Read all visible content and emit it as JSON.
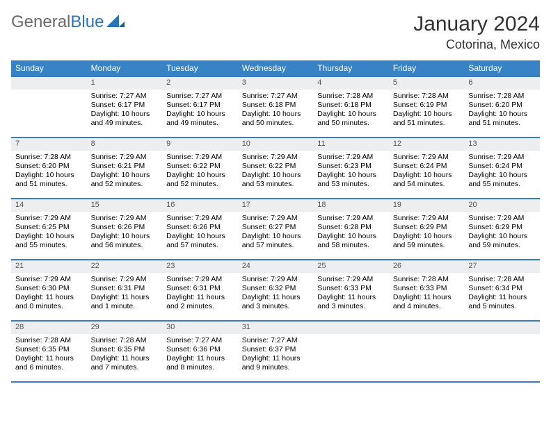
{
  "brand": {
    "general": "General",
    "blue": "Blue"
  },
  "title": "January 2024",
  "location": "Cotorina, Mexico",
  "colors": {
    "header_bg": "#3783c6",
    "row_border": "#3b7bbf",
    "daynum_bg": "#eceeef",
    "logo_gray": "#6a6a6a",
    "logo_blue": "#2a73b8"
  },
  "days_of_week": [
    "Sunday",
    "Monday",
    "Tuesday",
    "Wednesday",
    "Thursday",
    "Friday",
    "Saturday"
  ],
  "weeks": [
    [
      null,
      {
        "n": "1",
        "sr": "Sunrise: 7:27 AM",
        "ss": "Sunset: 6:17 PM",
        "d1": "Daylight: 10 hours",
        "d2": "and 49 minutes."
      },
      {
        "n": "2",
        "sr": "Sunrise: 7:27 AM",
        "ss": "Sunset: 6:17 PM",
        "d1": "Daylight: 10 hours",
        "d2": "and 49 minutes."
      },
      {
        "n": "3",
        "sr": "Sunrise: 7:27 AM",
        "ss": "Sunset: 6:18 PM",
        "d1": "Daylight: 10 hours",
        "d2": "and 50 minutes."
      },
      {
        "n": "4",
        "sr": "Sunrise: 7:28 AM",
        "ss": "Sunset: 6:18 PM",
        "d1": "Daylight: 10 hours",
        "d2": "and 50 minutes."
      },
      {
        "n": "5",
        "sr": "Sunrise: 7:28 AM",
        "ss": "Sunset: 6:19 PM",
        "d1": "Daylight: 10 hours",
        "d2": "and 51 minutes."
      },
      {
        "n": "6",
        "sr": "Sunrise: 7:28 AM",
        "ss": "Sunset: 6:20 PM",
        "d1": "Daylight: 10 hours",
        "d2": "and 51 minutes."
      }
    ],
    [
      {
        "n": "7",
        "sr": "Sunrise: 7:28 AM",
        "ss": "Sunset: 6:20 PM",
        "d1": "Daylight: 10 hours",
        "d2": "and 51 minutes."
      },
      {
        "n": "8",
        "sr": "Sunrise: 7:29 AM",
        "ss": "Sunset: 6:21 PM",
        "d1": "Daylight: 10 hours",
        "d2": "and 52 minutes."
      },
      {
        "n": "9",
        "sr": "Sunrise: 7:29 AM",
        "ss": "Sunset: 6:22 PM",
        "d1": "Daylight: 10 hours",
        "d2": "and 52 minutes."
      },
      {
        "n": "10",
        "sr": "Sunrise: 7:29 AM",
        "ss": "Sunset: 6:22 PM",
        "d1": "Daylight: 10 hours",
        "d2": "and 53 minutes."
      },
      {
        "n": "11",
        "sr": "Sunrise: 7:29 AM",
        "ss": "Sunset: 6:23 PM",
        "d1": "Daylight: 10 hours",
        "d2": "and 53 minutes."
      },
      {
        "n": "12",
        "sr": "Sunrise: 7:29 AM",
        "ss": "Sunset: 6:24 PM",
        "d1": "Daylight: 10 hours",
        "d2": "and 54 minutes."
      },
      {
        "n": "13",
        "sr": "Sunrise: 7:29 AM",
        "ss": "Sunset: 6:24 PM",
        "d1": "Daylight: 10 hours",
        "d2": "and 55 minutes."
      }
    ],
    [
      {
        "n": "14",
        "sr": "Sunrise: 7:29 AM",
        "ss": "Sunset: 6:25 PM",
        "d1": "Daylight: 10 hours",
        "d2": "and 55 minutes."
      },
      {
        "n": "15",
        "sr": "Sunrise: 7:29 AM",
        "ss": "Sunset: 6:26 PM",
        "d1": "Daylight: 10 hours",
        "d2": "and 56 minutes."
      },
      {
        "n": "16",
        "sr": "Sunrise: 7:29 AM",
        "ss": "Sunset: 6:26 PM",
        "d1": "Daylight: 10 hours",
        "d2": "and 57 minutes."
      },
      {
        "n": "17",
        "sr": "Sunrise: 7:29 AM",
        "ss": "Sunset: 6:27 PM",
        "d1": "Daylight: 10 hours",
        "d2": "and 57 minutes."
      },
      {
        "n": "18",
        "sr": "Sunrise: 7:29 AM",
        "ss": "Sunset: 6:28 PM",
        "d1": "Daylight: 10 hours",
        "d2": "and 58 minutes."
      },
      {
        "n": "19",
        "sr": "Sunrise: 7:29 AM",
        "ss": "Sunset: 6:29 PM",
        "d1": "Daylight: 10 hours",
        "d2": "and 59 minutes."
      },
      {
        "n": "20",
        "sr": "Sunrise: 7:29 AM",
        "ss": "Sunset: 6:29 PM",
        "d1": "Daylight: 10 hours",
        "d2": "and 59 minutes."
      }
    ],
    [
      {
        "n": "21",
        "sr": "Sunrise: 7:29 AM",
        "ss": "Sunset: 6:30 PM",
        "d1": "Daylight: 11 hours",
        "d2": "and 0 minutes."
      },
      {
        "n": "22",
        "sr": "Sunrise: 7:29 AM",
        "ss": "Sunset: 6:31 PM",
        "d1": "Daylight: 11 hours",
        "d2": "and 1 minute."
      },
      {
        "n": "23",
        "sr": "Sunrise: 7:29 AM",
        "ss": "Sunset: 6:31 PM",
        "d1": "Daylight: 11 hours",
        "d2": "and 2 minutes."
      },
      {
        "n": "24",
        "sr": "Sunrise: 7:29 AM",
        "ss": "Sunset: 6:32 PM",
        "d1": "Daylight: 11 hours",
        "d2": "and 3 minutes."
      },
      {
        "n": "25",
        "sr": "Sunrise: 7:29 AM",
        "ss": "Sunset: 6:33 PM",
        "d1": "Daylight: 11 hours",
        "d2": "and 3 minutes."
      },
      {
        "n": "26",
        "sr": "Sunrise: 7:28 AM",
        "ss": "Sunset: 6:33 PM",
        "d1": "Daylight: 11 hours",
        "d2": "and 4 minutes."
      },
      {
        "n": "27",
        "sr": "Sunrise: 7:28 AM",
        "ss": "Sunset: 6:34 PM",
        "d1": "Daylight: 11 hours",
        "d2": "and 5 minutes."
      }
    ],
    [
      {
        "n": "28",
        "sr": "Sunrise: 7:28 AM",
        "ss": "Sunset: 6:35 PM",
        "d1": "Daylight: 11 hours",
        "d2": "and 6 minutes."
      },
      {
        "n": "29",
        "sr": "Sunrise: 7:28 AM",
        "ss": "Sunset: 6:35 PM",
        "d1": "Daylight: 11 hours",
        "d2": "and 7 minutes."
      },
      {
        "n": "30",
        "sr": "Sunrise: 7:27 AM",
        "ss": "Sunset: 6:36 PM",
        "d1": "Daylight: 11 hours",
        "d2": "and 8 minutes."
      },
      {
        "n": "31",
        "sr": "Sunrise: 7:27 AM",
        "ss": "Sunset: 6:37 PM",
        "d1": "Daylight: 11 hours",
        "d2": "and 9 minutes."
      },
      null,
      null,
      null
    ]
  ]
}
